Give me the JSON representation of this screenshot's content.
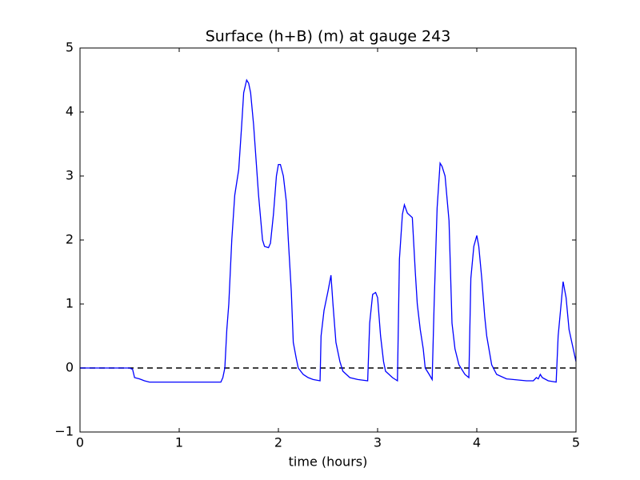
{
  "chart_data": {
    "type": "line",
    "title": "Surface (h+B) (m) at gauge 243",
    "x_label": "time (hours)",
    "x": [
      0,
      0.4,
      0.5,
      0.53,
      0.55,
      0.6,
      0.65,
      0.7,
      1.0,
      1.42,
      1.44,
      1.46,
      1.48,
      1.5,
      1.53,
      1.56,
      1.6,
      1.63,
      1.65,
      1.68,
      1.7,
      1.72,
      1.75,
      1.8,
      1.84,
      1.86,
      1.9,
      1.92,
      1.95,
      1.98,
      2.0,
      2.02,
      2.05,
      2.08,
      2.1,
      2.13,
      2.15,
      2.18,
      2.2,
      2.25,
      2.3,
      2.35,
      2.42,
      2.43,
      2.46,
      2.5,
      2.53,
      2.55,
      2.58,
      2.62,
      2.65,
      2.72,
      2.8,
      2.9,
      2.92,
      2.95,
      2.98,
      3.0,
      3.03,
      3.06,
      3.08,
      3.15,
      3.2,
      3.22,
      3.25,
      3.27,
      3.3,
      3.35,
      3.38,
      3.4,
      3.43,
      3.46,
      3.48,
      3.52,
      3.55,
      3.57,
      3.6,
      3.63,
      3.65,
      3.68,
      3.72,
      3.75,
      3.78,
      3.82,
      3.88,
      3.92,
      3.94,
      3.97,
      4.0,
      4.02,
      4.05,
      4.08,
      4.1,
      4.15,
      4.2,
      4.3,
      4.5,
      4.57,
      4.6,
      4.62,
      4.64,
      4.66,
      4.72,
      4.8,
      4.82,
      4.85,
      4.87,
      4.9,
      4.93,
      5.0
    ],
    "series": [
      {
        "name": "Surface (h+B)",
        "color": "#0000ff",
        "values": [
          0,
          0,
          0,
          -0.02,
          -0.15,
          -0.17,
          -0.2,
          -0.22,
          -0.22,
          -0.22,
          -0.15,
          0,
          0.6,
          1.0,
          2.0,
          2.7,
          3.1,
          3.8,
          4.3,
          4.5,
          4.45,
          4.3,
          3.8,
          2.7,
          2.0,
          1.9,
          1.88,
          1.95,
          2.4,
          3.0,
          3.18,
          3.18,
          3.0,
          2.6,
          2.0,
          1.2,
          0.4,
          0.15,
          0,
          -0.1,
          -0.15,
          -0.18,
          -0.2,
          0.5,
          0.9,
          1.2,
          1.45,
          1.0,
          0.4,
          0.1,
          -0.05,
          -0.15,
          -0.18,
          -0.2,
          0.7,
          1.15,
          1.18,
          1.1,
          0.5,
          0.1,
          -0.05,
          -0.15,
          -0.2,
          1.7,
          2.4,
          2.55,
          2.42,
          2.35,
          1.5,
          1.0,
          0.6,
          0.3,
          0.0,
          -0.1,
          -0.18,
          1.0,
          2.5,
          3.2,
          3.15,
          3.0,
          2.3,
          0.7,
          0.3,
          0.05,
          -0.1,
          -0.15,
          1.4,
          1.9,
          2.07,
          1.9,
          1.4,
          0.8,
          0.5,
          0.05,
          -0.1,
          -0.17,
          -0.2,
          -0.2,
          -0.15,
          -0.17,
          -0.1,
          -0.15,
          -0.2,
          -0.22,
          0.5,
          1.0,
          1.35,
          1.1,
          0.6,
          0.1
        ]
      }
    ],
    "reference_line": {
      "value": 0,
      "style": "dashed",
      "color": "#000000"
    },
    "xlim": [
      0,
      5
    ],
    "xticks": [
      0,
      1,
      2,
      3,
      4,
      5
    ],
    "ylim": [
      -1,
      5
    ],
    "yticks": [
      {
        "value": -1,
        "label": "−1"
      },
      0,
      1,
      2,
      3,
      4,
      5
    ],
    "grid": false
  }
}
